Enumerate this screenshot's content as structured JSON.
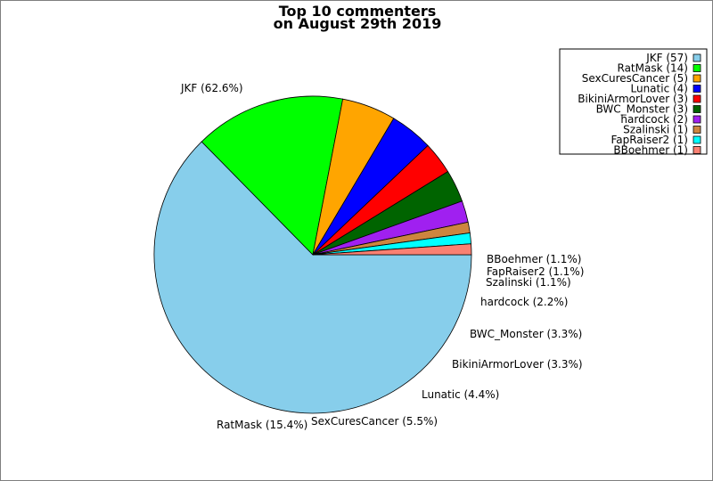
{
  "chart_data": {
    "type": "pie",
    "title_lines": [
      "Top 10 commenters",
      "on August 29th 2019"
    ],
    "slices": [
      {
        "name": "JKF",
        "value": 57,
        "percent_label": "JKF (62.6%)",
        "legend_label": "JKF (57)",
        "color": "#87ceeb"
      },
      {
        "name": "RatMask",
        "value": 14,
        "percent_label": "RatMask (15.4%)",
        "legend_label": "RatMask (14)",
        "color": "#00ff00"
      },
      {
        "name": "SexCuresCancer",
        "value": 5,
        "percent_label": "SexCuresCancer (5.5%)",
        "legend_label": "SexCuresCancer (5)",
        "color": "#ffa500"
      },
      {
        "name": "Lunatic",
        "value": 4,
        "percent_label": "Lunatic (4.4%)",
        "legend_label": "Lunatic (4)",
        "color": "#0000ff"
      },
      {
        "name": "BikiniArmorLover",
        "value": 3,
        "percent_label": "BikiniArmorLover (3.3%)",
        "legend_label": "BikiniArmorLover (3)",
        "color": "#ff0000"
      },
      {
        "name": "BWC_Monster",
        "value": 3,
        "percent_label": "BWC_Monster (3.3%)",
        "legend_label": "BWC_Monster (3)",
        "color": "#006400"
      },
      {
        "name": "hardcock",
        "value": 2,
        "percent_label": "hardcock (2.2%)",
        "legend_label": "hardcock (2)",
        "color": "#a020f0"
      },
      {
        "name": "Szalinski",
        "value": 1,
        "percent_label": "Szalinski (1.1%)",
        "legend_label": "Szalinski (1)",
        "color": "#cd853f"
      },
      {
        "name": "FapRaiser2",
        "value": 1,
        "percent_label": "FapRaiser2 (1.1%)",
        "legend_label": "FapRaiser2 (1)",
        "color": "#00ffff"
      },
      {
        "name": "BBoehmer",
        "value": 1,
        "percent_label": "BBoehmer (1.1%)",
        "legend_label": "BBoehmer (1)",
        "color": "#fa8072"
      }
    ],
    "start_angle": "3 o'clock",
    "direction": "clockwise",
    "legend_position": "top-right"
  }
}
